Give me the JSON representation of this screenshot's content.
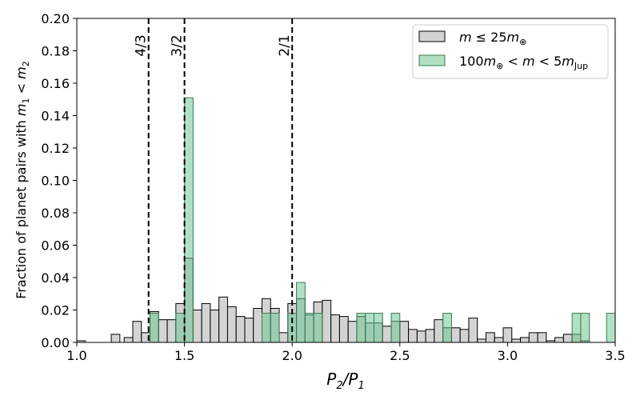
{
  "chart_data": {
    "type": "bar",
    "xlabel": "P₂/P₁",
    "ylabel": "Fraction of planet pairs with m₁ < m₂",
    "xlim": [
      1.0,
      3.5
    ],
    "ylim": [
      0.0,
      0.2
    ],
    "bin_width": 0.04,
    "xticks": [
      "1.0",
      "1.5",
      "2.0",
      "2.5",
      "3.0",
      "3.5"
    ],
    "yticks": [
      "0.00",
      "0.02",
      "0.04",
      "0.06",
      "0.08",
      "0.10",
      "0.12",
      "0.14",
      "0.16",
      "0.18",
      "0.20"
    ],
    "grid": false,
    "legend_position": "top-right",
    "resonances": [
      {
        "x": 1.3333,
        "label": "4/3"
      },
      {
        "x": 1.5,
        "label": "3/2"
      },
      {
        "x": 2.0,
        "label": "2/1"
      }
    ],
    "series": [
      {
        "name": "m ≤ 25m⊕",
        "color": "#d3d3d3",
        "edge": "#000000",
        "x": [
          1.0,
          1.16,
          1.22,
          1.26,
          1.3,
          1.34,
          1.38,
          1.42,
          1.46,
          1.5,
          1.54,
          1.58,
          1.62,
          1.66,
          1.7,
          1.74,
          1.78,
          1.82,
          1.86,
          1.9,
          1.94,
          1.98,
          2.02,
          2.06,
          2.1,
          2.14,
          2.18,
          2.22,
          2.26,
          2.3,
          2.34,
          2.38,
          2.42,
          2.46,
          2.5,
          2.54,
          2.58,
          2.62,
          2.66,
          2.7,
          2.74,
          2.78,
          2.82,
          2.86,
          2.9,
          2.94,
          2.98,
          3.02,
          3.06,
          3.1,
          3.14,
          3.18,
          3.22,
          3.26,
          3.3,
          3.34,
          3.38,
          3.42,
          3.46,
          3.5
        ],
        "values": [
          0.001,
          0.005,
          0.003,
          0.013,
          0.006,
          0.019,
          0.014,
          0.014,
          0.024,
          0.052,
          0.02,
          0.024,
          0.02,
          0.028,
          0.022,
          0.016,
          0.015,
          0.021,
          0.027,
          0.021,
          0.006,
          0.024,
          0.027,
          0.017,
          0.025,
          0.026,
          0.017,
          0.016,
          0.013,
          0.016,
          0.012,
          0.012,
          0.01,
          0.013,
          0.013,
          0.008,
          0.007,
          0.008,
          0.014,
          0.009,
          0.009,
          0.008,
          0.015,
          0.002,
          0.006,
          0.003,
          0.009,
          0.002,
          0.003,
          0.006,
          0.006,
          0.001,
          0.003,
          0.005,
          0.005,
          0.001,
          0,
          0,
          0,
          0
        ]
      },
      {
        "name": "100m⊕ < m < 5m_Jup",
        "color": "#71c794",
        "edge": "#3a7a52",
        "x": [
          1.34,
          1.46,
          1.5,
          1.86,
          1.9,
          1.98,
          2.02,
          2.06,
          2.1,
          2.3,
          2.34,
          2.38,
          2.46,
          2.7,
          3.3,
          3.34,
          3.46
        ],
        "values": [
          0.018,
          0.018,
          0.151,
          0.018,
          0.018,
          0.018,
          0.037,
          0.018,
          0.018,
          0.018,
          0.018,
          0.018,
          0.018,
          0.018,
          0.018,
          0.018,
          0.018
        ]
      }
    ]
  }
}
